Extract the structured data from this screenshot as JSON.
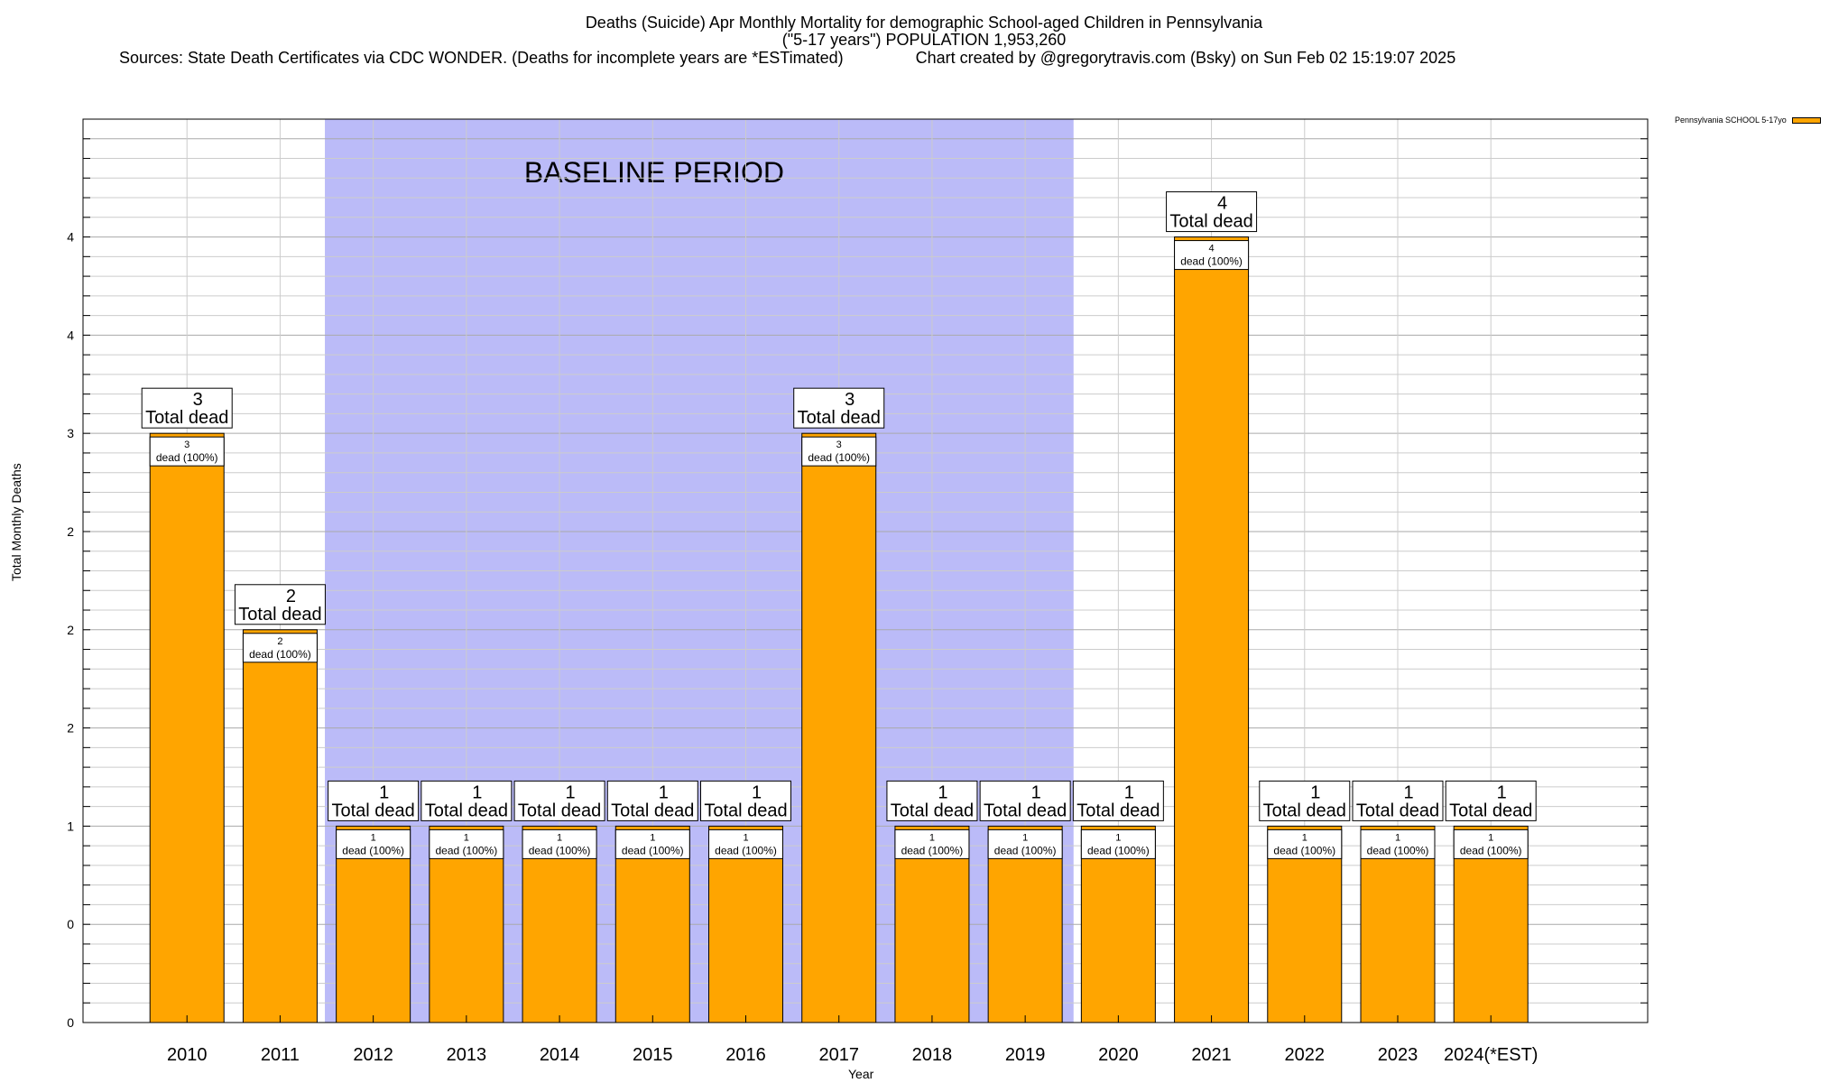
{
  "header": {
    "title_line1": "Deaths (Suicide) Apr Monthly Mortality for demographic School-aged Children in Pennsylvania",
    "title_line2": "(\"5-17 years\") POPULATION 1,953,260",
    "title_line3": "Sources: State Death Certificates via CDC WONDER. (Deaths for incomplete years are *ESTimated)                Chart created by @gregorytravis.com (Bsky) on Sun Feb 02 15:19:07 2025"
  },
  "chart_data": {
    "type": "bar",
    "title": "Deaths (Suicide) Apr Monthly Mortality for demographic School-aged Children in Pennsylvania",
    "xlabel": "Year",
    "ylabel": "Total Monthly Deaths",
    "ylim": [
      0,
      4.6
    ],
    "y_tick_values": [
      0,
      0.5,
      1,
      1.5,
      2,
      2.5,
      3,
      3.5,
      4
    ],
    "y_tick_labels": [
      "0",
      "0",
      "1",
      "2",
      "2",
      "2",
      "3",
      "4",
      "4"
    ],
    "grid": true,
    "legend_position": "top-right",
    "categories": [
      "2010",
      "2011",
      "2012",
      "2013",
      "2014",
      "2015",
      "2016",
      "2017",
      "2018",
      "2019",
      "2020",
      "2021",
      "2022",
      "2023",
      "2024(*EST)"
    ],
    "series": [
      {
        "name": "Pennsylvania SCHOOL 5-17yo",
        "values": [
          3,
          2,
          1,
          1,
          1,
          1,
          1,
          3,
          1,
          1,
          1,
          4,
          1,
          1,
          1
        ],
        "color": "#ffa500"
      }
    ],
    "total_label_text": "Total dead",
    "inner_label_text": "dead (100%)",
    "baseline": {
      "label": "BASELINE PERIOD",
      "start": "2012",
      "end": "2019",
      "color": "#bbbbf8"
    }
  }
}
